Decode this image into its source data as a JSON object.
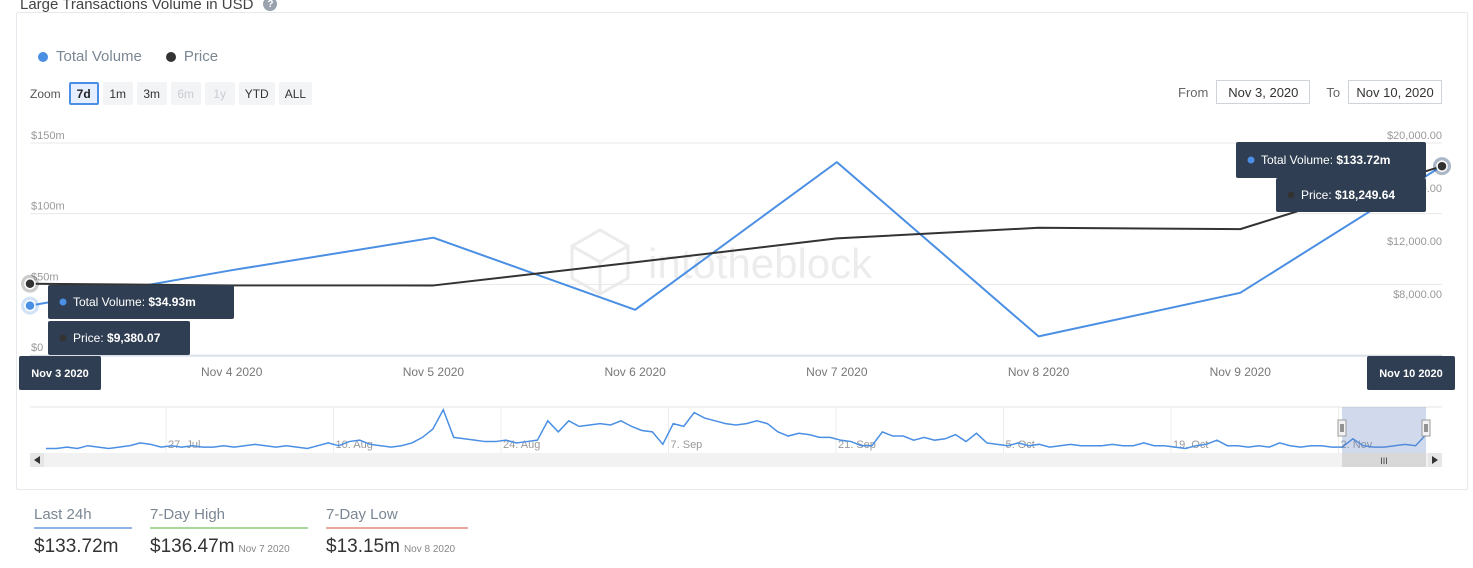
{
  "header": {
    "title": "Large Transactions Volume in USD",
    "help_icon": "question-circle-icon"
  },
  "legend": [
    {
      "name": "Total Volume",
      "color": "#4a8fe3"
    },
    {
      "name": "Price",
      "color": "#333333"
    }
  ],
  "zoom": {
    "label": "Zoom",
    "buttons": [
      {
        "label": "7d",
        "state": "active"
      },
      {
        "label": "1m",
        "state": "normal"
      },
      {
        "label": "3m",
        "state": "normal"
      },
      {
        "label": "6m",
        "state": "disabled"
      },
      {
        "label": "1y",
        "state": "disabled"
      },
      {
        "label": "YTD",
        "state": "normal"
      },
      {
        "label": "ALL",
        "state": "normal"
      }
    ]
  },
  "range": {
    "from_label": "From",
    "from_value": "Nov 3, 2020",
    "to_label": "To",
    "to_value": "Nov 10, 2020"
  },
  "watermark": "intotheblock",
  "chart_data": {
    "type": "line",
    "categories": [
      "Nov 3 2020",
      "Nov 4 2020",
      "Nov 5 2020",
      "Nov 6 2020",
      "Nov 7 2020",
      "Nov 8 2020",
      "Nov 9 2020",
      "Nov 10 2020"
    ],
    "series": [
      {
        "name": "Total Volume",
        "axis": "left",
        "color": "#4a8fe3",
        "values": [
          34.93,
          60,
          83,
          32,
          136.47,
          13.15,
          44,
          133.72
        ]
      },
      {
        "name": "Price",
        "axis": "right",
        "color": "#333333",
        "values": [
          9380.07,
          9250,
          9250,
          11000,
          12800,
          13600,
          13500,
          18249.64
        ]
      }
    ],
    "y_left": {
      "ylim": [
        0,
        150
      ],
      "ticks": [
        0,
        50,
        100,
        150
      ],
      "tick_labels": [
        "$0",
        "$50m",
        "$100m",
        "$150m"
      ]
    },
    "y_right": {
      "ylim": [
        4000,
        20000
      ],
      "ticks": [
        8000,
        12000,
        16000,
        20000
      ],
      "tick_labels": [
        "$8,000.00",
        "$12,000.00",
        "$16,000.00",
        "$20,000.00"
      ]
    },
    "grid": true,
    "tooltips": {
      "start": {
        "date": "Nov 3 2020",
        "volume": "Total Volume: $34.93m",
        "price": "Price: $9,380.07"
      },
      "end": {
        "date": "Nov 10 2020",
        "volume": "Total Volume: $133.72m",
        "price": "Price: $18,249.64"
      }
    },
    "navigator": {
      "labels": [
        "27. Jul",
        "10. Aug",
        "24. Aug",
        "7. Sep",
        "21. Sep",
        "5. Oct",
        "19. Oct",
        "2. Nov"
      ],
      "values": [
        2,
        2,
        2.5,
        2,
        3,
        2.5,
        2,
        2.5,
        3,
        4,
        3.5,
        2.5,
        3,
        2.5,
        3,
        2.5,
        2.5,
        3,
        2.5,
        3,
        3.5,
        3,
        2.5,
        3,
        2.5,
        2,
        3,
        4,
        3,
        4.5,
        5,
        3.5,
        3,
        2.5,
        3,
        4,
        6,
        9,
        16,
        6,
        5.5,
        5,
        4.5,
        4.5,
        5,
        4,
        4.5,
        5,
        12,
        8,
        12,
        10,
        10.5,
        11,
        10.5,
        12,
        10,
        8.5,
        8,
        3.5,
        11,
        10,
        15,
        13,
        12,
        11,
        10.5,
        11,
        12,
        11,
        8,
        6.5,
        7.5,
        7,
        6,
        6,
        5,
        4.5,
        3,
        3,
        8,
        6.5,
        6.5,
        5,
        6,
        5,
        5.5,
        7,
        4.5,
        7.5,
        4,
        3.5,
        3,
        4,
        3,
        3.5,
        2.5,
        3,
        3.5,
        3,
        3,
        3,
        3.5,
        3,
        3,
        4,
        3,
        3,
        2.5,
        2,
        3,
        3.5,
        5,
        3,
        3,
        2.5,
        3,
        2.5,
        4,
        3,
        2.5,
        3,
        3,
        2.5,
        2.5,
        5.5,
        3,
        2.5,
        2.5,
        3,
        3.5,
        3,
        7
      ],
      "ylim": [
        0,
        17
      ]
    }
  },
  "stats": [
    {
      "label": "Last 24h",
      "value": "$133.72m",
      "date": "",
      "color": "#8fb4e6"
    },
    {
      "label": "7-Day High",
      "value": "$136.47m",
      "date": "Nov 7 2020",
      "color": "#a6d99a"
    },
    {
      "label": "7-Day Low",
      "value": "$13.15m",
      "date": "Nov 8 2020",
      "color": "#e8a9a0"
    }
  ]
}
